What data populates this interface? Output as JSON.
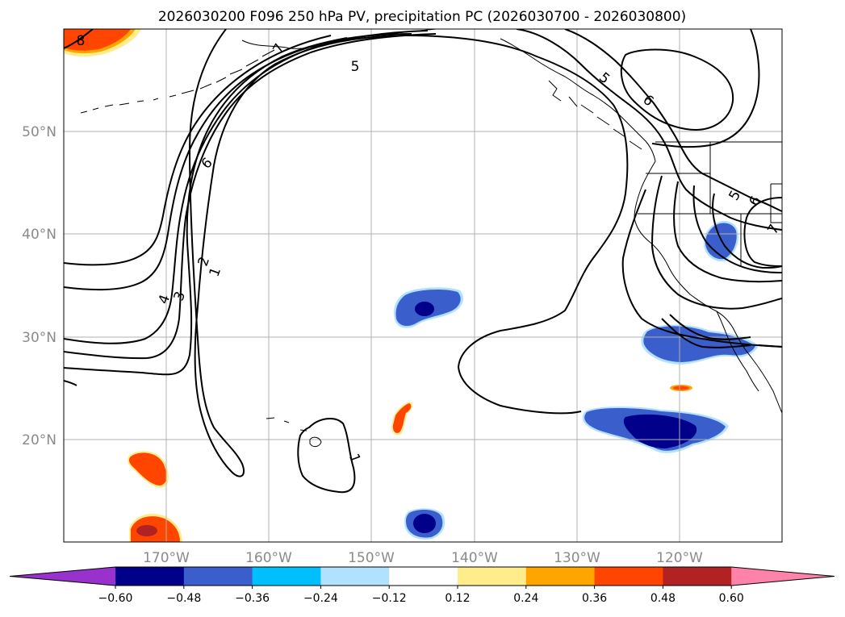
{
  "title": "2026030200 F096 250 hPa PV, precipitation PC (2026030700 - 2026030800)",
  "lon_ticks": [
    "170°W",
    "160°W",
    "150°W",
    "140°W",
    "130°W",
    "120°W"
  ],
  "lat_ticks": [
    "50°N",
    "40°N",
    "30°N",
    "20°N"
  ],
  "colorbar": {
    "labels": [
      "−0.60",
      "−0.48",
      "−0.36",
      "−0.24",
      "−0.12",
      "0.12",
      "0.24",
      "0.36",
      "0.48",
      "0.60"
    ],
    "colors": [
      "#9932cc",
      "#00008b",
      "#3a5fcd",
      "#00bfff",
      "#b0e2ff",
      "#ffffff",
      "#ffec8b",
      "#ffa500",
      "#ff4500",
      "#b22222",
      "#ff82ab"
    ]
  },
  "contour_labels": [
    "8",
    "7",
    "5",
    "5",
    "6",
    "6",
    "4",
    "3",
    "2",
    "1",
    "1",
    "5",
    "6",
    "7"
  ],
  "colors": {
    "coast": "#000000",
    "grid": "#b0b0b0",
    "pv_contour": "#000000"
  }
}
